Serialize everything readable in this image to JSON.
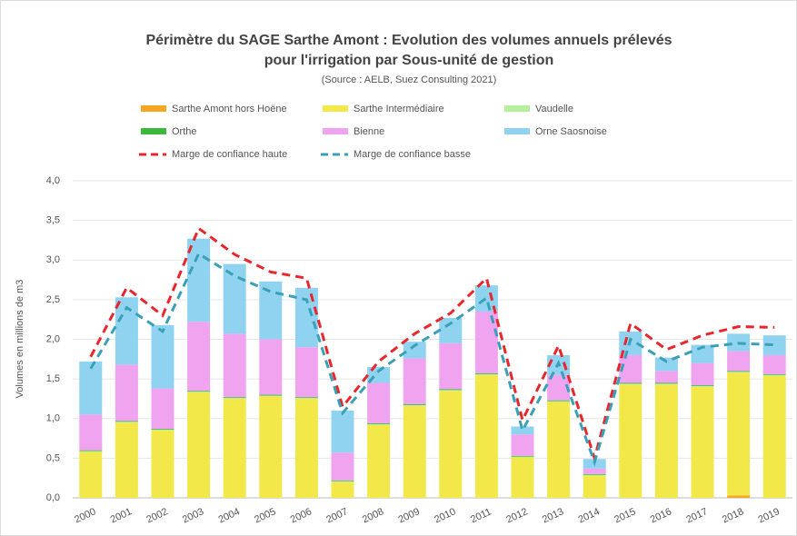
{
  "chart_data": {
    "type": "stacked_bar_line",
    "title": "Périmètre du SAGE Sarthe Amont : Evolution des volumes annuels prélevés",
    "title_line2": "pour l'irrigation par Sous-unité de gestion",
    "subtitle": "(Source : AELB, Suez Consulting 2021)",
    "y_label": "Volumes en millions de m3",
    "categories": [
      "2000",
      "2001",
      "2002",
      "2003",
      "2004",
      "2005",
      "2006",
      "2007",
      "2008",
      "2009",
      "2010",
      "2011",
      "2012",
      "2013",
      "2014",
      "2015",
      "2016",
      "2017",
      "2018",
      "2019"
    ],
    "series": [
      {
        "name": "Sarthe Amont hors Hoëne",
        "color": "#f5a623",
        "values": [
          0,
          0,
          0,
          0,
          0,
          0,
          0,
          0,
          0,
          0,
          0,
          0,
          0,
          0,
          0,
          0,
          0,
          0,
          0.03,
          0
        ]
      },
      {
        "name": "Sarthe Intermédiaire",
        "color": "#f3e84a",
        "values": [
          0.58,
          0.95,
          0.85,
          1.33,
          1.25,
          1.28,
          1.25,
          0.2,
          0.92,
          1.16,
          1.35,
          1.55,
          0.51,
          1.21,
          0.28,
          1.43,
          1.43,
          1.4,
          1.55,
          1.54
        ]
      },
      {
        "name": "Vaudelle",
        "color": "#b6ef9a",
        "values": [
          0.01,
          0.01,
          0.01,
          0.01,
          0.01,
          0.01,
          0.01,
          0.01,
          0.01,
          0.01,
          0.01,
          0.01,
          0.01,
          0.01,
          0.01,
          0.01,
          0.01,
          0.01,
          0.01,
          0.01
        ]
      },
      {
        "name": "Orthe",
        "color": "#3cb83c",
        "values": [
          0.01,
          0.01,
          0.01,
          0.01,
          0.01,
          0.01,
          0.01,
          0.01,
          0.01,
          0.01,
          0.01,
          0.01,
          0.01,
          0.01,
          0.01,
          0.01,
          0.01,
          0.01,
          0.01,
          0.01
        ]
      },
      {
        "name": "Bienne",
        "color": "#f0a3ef",
        "values": [
          0.45,
          0.71,
          0.51,
          0.87,
          0.8,
          0.7,
          0.63,
          0.35,
          0.51,
          0.58,
          0.58,
          0.78,
          0.27,
          0.32,
          0.07,
          0.35,
          0.15,
          0.28,
          0.25,
          0.24
        ]
      },
      {
        "name": "Orne Saosnoise",
        "color": "#8fd3f0",
        "values": [
          0.67,
          0.85,
          0.8,
          1.05,
          0.88,
          0.73,
          0.75,
          0.53,
          0.2,
          0.21,
          0.32,
          0.33,
          0.1,
          0.25,
          0.12,
          0.3,
          0.17,
          0.23,
          0.22,
          0.25
        ]
      }
    ],
    "lines": [
      {
        "name": "Marge de confiance haute",
        "color": "#e8262b",
        "values": [
          1.78,
          2.65,
          2.3,
          3.4,
          3.07,
          2.85,
          2.77,
          1.15,
          1.72,
          2.07,
          2.33,
          2.77,
          0.98,
          1.92,
          0.5,
          2.2,
          1.87,
          2.05,
          2.16,
          2.15
        ]
      },
      {
        "name": "Marge de confiance basse",
        "color": "#3aa0b8",
        "values": [
          1.63,
          2.4,
          2.1,
          3.08,
          2.8,
          2.6,
          2.5,
          1.07,
          1.6,
          1.92,
          2.2,
          2.52,
          0.85,
          1.7,
          0.45,
          2.0,
          1.72,
          1.9,
          1.95,
          1.93
        ]
      }
    ],
    "ylim": [
      0,
      4
    ],
    "yticks": [
      {
        "value": 0,
        "label": "0,0"
      },
      {
        "value": 0.5,
        "label": "0,5"
      },
      {
        "value": 1,
        "label": "1,0"
      },
      {
        "value": 1.5,
        "label": "1,5"
      },
      {
        "value": 2,
        "label": "2,0"
      },
      {
        "value": 2.5,
        "label": "2,5"
      },
      {
        "value": 3,
        "label": "3,0"
      },
      {
        "value": 3.5,
        "label": "3,5"
      },
      {
        "value": 4,
        "label": "4,0"
      }
    ],
    "grid": true
  }
}
